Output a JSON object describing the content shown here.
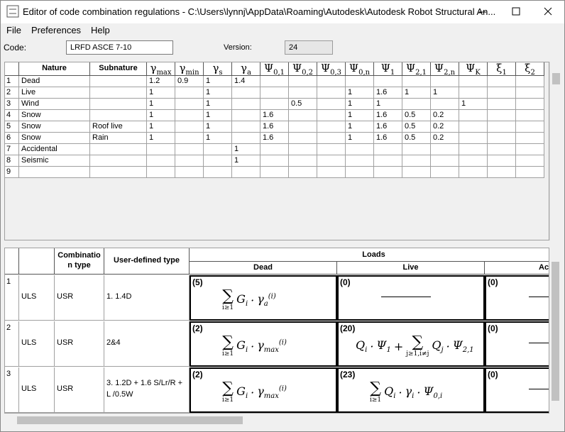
{
  "window": {
    "title": "Editor of code combination regulations - C:\\Users\\lynnj\\AppData\\Roaming\\Autodesk\\Autodesk Robot Structural An...",
    "menu": [
      "File",
      "Preferences",
      "Help"
    ]
  },
  "form": {
    "code_label": "Code:",
    "code_value": "LRFD ASCE 7-10",
    "version_label": "Version:",
    "version_value": "24"
  },
  "factors_table": {
    "headers": [
      "Nature",
      "Subnature",
      {
        "t": "γ",
        "sub": "max"
      },
      {
        "t": "γ",
        "sub": "min"
      },
      {
        "t": "γ",
        "sub": "s"
      },
      {
        "t": "γ",
        "sub": "a"
      },
      {
        "t": "Ψ",
        "sub": "0,1"
      },
      {
        "t": "Ψ",
        "sub": "0,2"
      },
      {
        "t": "Ψ",
        "sub": "0,3"
      },
      {
        "t": "Ψ",
        "sub": "0,n"
      },
      {
        "t": "Ψ",
        "sub": "1"
      },
      {
        "t": "Ψ",
        "sub": "2,1"
      },
      {
        "t": "Ψ",
        "sub": "2,n"
      },
      {
        "t": "Ψ",
        "sub": "K"
      },
      {
        "t": "ξ",
        "sub": "1"
      },
      {
        "t": "ξ",
        "sub": "2"
      }
    ],
    "rows": [
      [
        1,
        "Dead",
        null,
        1.2,
        0.9,
        1,
        1.4,
        null,
        null,
        null,
        null,
        null,
        null,
        null,
        null,
        null,
        null
      ],
      [
        2,
        "Live",
        null,
        1,
        null,
        1,
        null,
        null,
        null,
        null,
        1,
        1.6,
        1,
        1,
        null,
        null,
        null
      ],
      [
        3,
        "Wind",
        null,
        1,
        null,
        1,
        null,
        null,
        0.5,
        null,
        1,
        1,
        null,
        null,
        1,
        null,
        null
      ],
      [
        4,
        "Snow",
        null,
        1,
        null,
        1,
        null,
        1.6,
        null,
        null,
        1,
        1.6,
        0.5,
        0.2,
        null,
        null,
        null
      ],
      [
        5,
        "Snow",
        "Roof live",
        1,
        null,
        1,
        null,
        1.6,
        null,
        null,
        1,
        1.6,
        0.5,
        0.2,
        null,
        null,
        null
      ],
      [
        6,
        "Snow",
        "Rain",
        1,
        null,
        1,
        null,
        1.6,
        null,
        null,
        1,
        1.6,
        0.5,
        0.2,
        null,
        null,
        null
      ],
      [
        7,
        "Accidental",
        null,
        null,
        null,
        null,
        1,
        null,
        null,
        null,
        null,
        null,
        null,
        null,
        null,
        null,
        null
      ],
      [
        8,
        "Seismic",
        null,
        null,
        null,
        null,
        1,
        null,
        null,
        null,
        null,
        null,
        null,
        null,
        null,
        null,
        null
      ],
      [
        9,
        null,
        null,
        null,
        null,
        null,
        null,
        null,
        null,
        null,
        null,
        null,
        null,
        null,
        null,
        null,
        null
      ]
    ]
  },
  "combinations_table": {
    "headers": [
      "Combinatio n type",
      "User-defined type"
    ],
    "loads_header": "Loads",
    "load_headers": [
      "Dead",
      "Live",
      "Ac"
    ],
    "rows": [
      {
        "number": 1,
        "limit": "ULS",
        "type": "USR",
        "user_type": "1. 1.4D",
        "cells": [
          {
            "count": "(5)",
            "formula": [
              {
                "t": "∑",
                "under": "i≥1"
              },
              {
                "t": "G",
                "sub": "i"
              },
              {
                "t": "·"
              },
              {
                "t": "γ",
                "sub": "a",
                "sup": "(i)"
              }
            ]
          },
          {
            "count": "(0)"
          },
          {
            "count": "(0)"
          }
        ]
      },
      {
        "number": 2,
        "limit": "ULS",
        "type": "USR",
        "user_type": "2&4",
        "cells": [
          {
            "count": "(2)",
            "formula": [
              {
                "t": "∑",
                "under": "i≥1"
              },
              {
                "t": "G",
                "sub": "i"
              },
              {
                "t": "·"
              },
              {
                "t": "γ",
                "sub": "max",
                "sup": "(i)"
              }
            ]
          },
          {
            "count": "(20)",
            "formula": [
              {
                "t": "Q",
                "sub": "i"
              },
              {
                "t": "·"
              },
              {
                "t": "Ψ",
                "sub": "1"
              },
              {
                "t": "+"
              },
              {
                "t": "∑",
                "under": "j≥1,i≠j"
              },
              {
                "t": "Q",
                "sub": "j"
              },
              {
                "t": "·"
              },
              {
                "t": "Ψ",
                "sub": "2,1"
              }
            ]
          },
          {
            "count": "(0)"
          }
        ]
      },
      {
        "number": 3,
        "limit": "ULS",
        "type": "USR",
        "user_type": "3. 1.2D + 1.6 S/Lr/R + L /0.5W",
        "cells": [
          {
            "count": "(2)",
            "formula": [
              {
                "t": "∑",
                "under": "i≥1"
              },
              {
                "t": "G",
                "sub": "i"
              },
              {
                "t": "·"
              },
              {
                "t": "γ",
                "sub": "max",
                "sup": "(i)"
              }
            ]
          },
          {
            "count": "(23)",
            "formula": [
              {
                "t": "∑",
                "under": "i≥1"
              },
              {
                "t": "Q",
                "sub": "i"
              },
              {
                "t": "·"
              },
              {
                "t": "γ",
                "sub": "i"
              },
              {
                "t": "·"
              },
              {
                "t": "Ψ",
                "sub": "0,i"
              }
            ]
          },
          {
            "count": "(0)"
          }
        ]
      }
    ]
  }
}
